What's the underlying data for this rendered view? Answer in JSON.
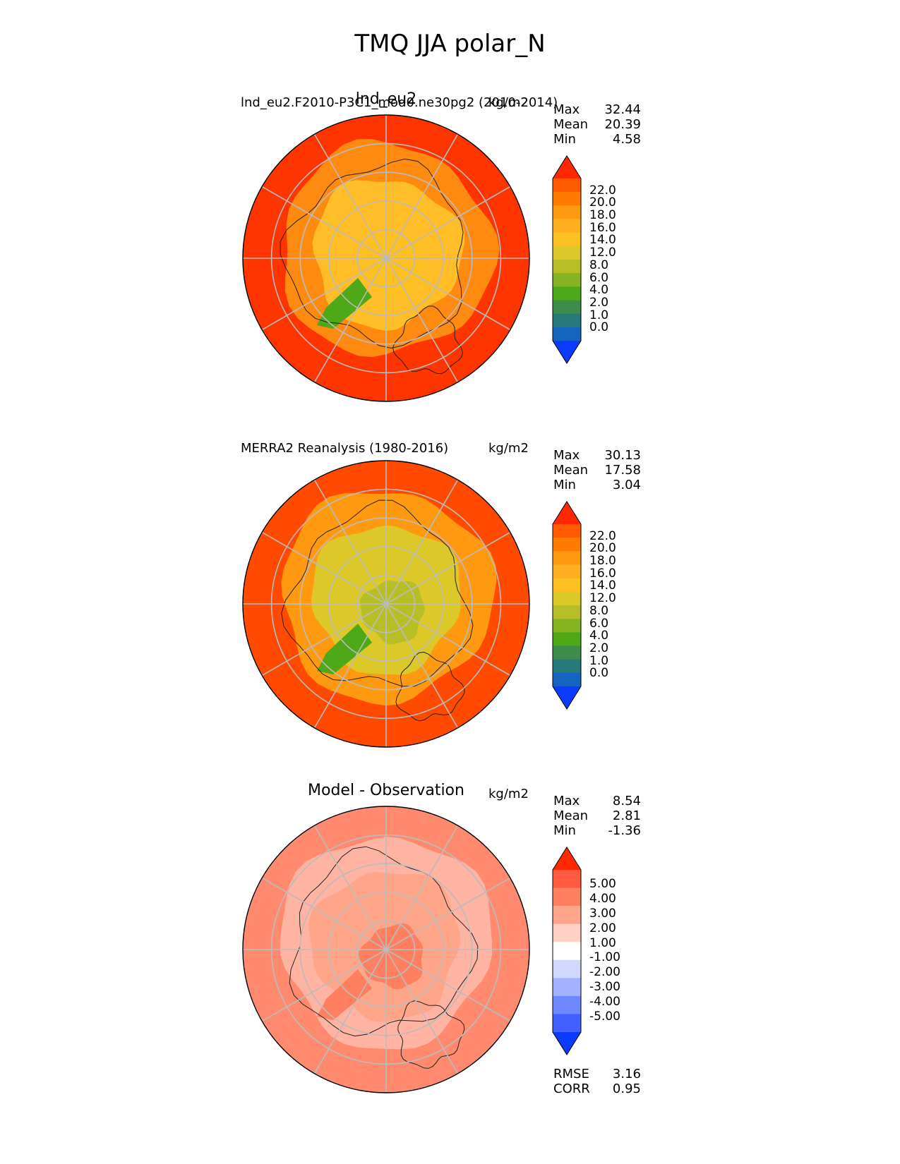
{
  "figure_title": "TMQ JJA polar_N",
  "chart_data": [
    {
      "type": "heatmap",
      "projection": "north polar stereographic",
      "title": "lnd_eu2",
      "left_label": "lnd_eu2.F2010-P3C1_mod0.ne30pg2 (2010-2014)",
      "units": "kg/m2",
      "stats": [
        {
          "label": "Max",
          "value": "32.44"
        },
        {
          "label": "Mean",
          "value": "20.39"
        },
        {
          "label": "Min",
          "value": "4.58"
        }
      ],
      "colorbar": {
        "ticks": [
          "22.0",
          "20.0",
          "18.0",
          "16.0",
          "14.0",
          "12.0",
          "8.0",
          "6.0",
          "4.0",
          "2.0",
          "1.0",
          "0.0"
        ],
        "colors": [
          "#ff2800",
          "#ff5a00",
          "#ff7b00",
          "#ff9a10",
          "#ffb020",
          "#fcc023",
          "#dcc828",
          "#b8bf26",
          "#86b420",
          "#4ea817",
          "#3e8c4c",
          "#267a7c",
          "#1565c0",
          "#0a3bff"
        ]
      },
      "regions": {
        "outer": "#ff3500",
        "ring": "#ff8a10",
        "inner": "#ffbd28",
        "pole": "#fcc023",
        "greenland": "#4ea817"
      }
    },
    {
      "type": "heatmap",
      "projection": "north polar stereographic",
      "title": "",
      "left_label": "MERRA2 Reanalysis (1980-2016)",
      "units": "kg/m2",
      "stats": [
        {
          "label": "Max",
          "value": "30.13"
        },
        {
          "label": "Mean",
          "value": "17.58"
        },
        {
          "label": "Min",
          "value": "3.04"
        }
      ],
      "colorbar": {
        "ticks": [
          "22.0",
          "20.0",
          "18.0",
          "16.0",
          "14.0",
          "12.0",
          "8.0",
          "6.0",
          "4.0",
          "2.0",
          "1.0",
          "0.0"
        ],
        "colors": [
          "#ff2800",
          "#ff5a00",
          "#ff7b00",
          "#ff9a10",
          "#ffb020",
          "#fcc023",
          "#dcc828",
          "#b8bf26",
          "#86b420",
          "#4ea817",
          "#3e8c4c",
          "#267a7c",
          "#1565c0",
          "#0a3bff"
        ]
      },
      "regions": {
        "outer": "#ff4a00",
        "ring": "#ff9a10",
        "inner": "#dcc828",
        "pole": "#b8bf26",
        "greenland": "#4ea817"
      }
    },
    {
      "type": "heatmap",
      "projection": "north polar stereographic",
      "title": "Model - Observation",
      "left_label": "",
      "units": "kg/m2",
      "stats": [
        {
          "label": "Max",
          "value": "8.54"
        },
        {
          "label": "Mean",
          "value": "2.81"
        },
        {
          "label": "Min",
          "value": "-1.36"
        }
      ],
      "colorbar": {
        "ticks": [
          "5.00",
          "4.00",
          "3.00",
          "2.00",
          "1.00",
          "-1.00",
          "-2.00",
          "-3.00",
          "-4.00",
          "-5.00"
        ],
        "colors": [
          "#ff2800",
          "#ff5a40",
          "#ff8060",
          "#ffa58a",
          "#ffd0c4",
          "#ffffff",
          "#d0d8ff",
          "#a2b2ff",
          "#7088ff",
          "#4060ff",
          "#0a3bff"
        ]
      },
      "regions": {
        "outer": "#ff8a70",
        "ring": "#ffb3a2",
        "inner": "#ffa58a",
        "pole": "#ff8060",
        "greenland": "#ff8060"
      },
      "metrics": [
        {
          "label": "RMSE",
          "value": "3.16"
        },
        {
          "label": "CORR",
          "value": "0.95"
        }
      ]
    }
  ]
}
